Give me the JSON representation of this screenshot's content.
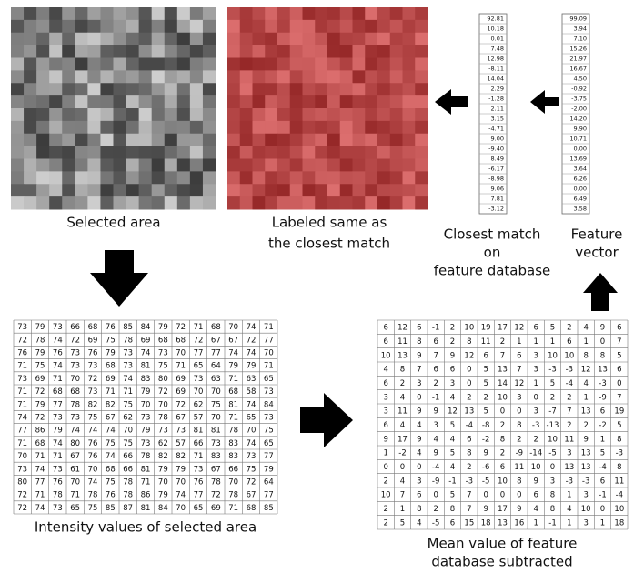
{
  "selected_area": {
    "label": "Selected area"
  },
  "labeled_area": {
    "label_lines": [
      "Labeled same as",
      "the closest match"
    ]
  },
  "closest_match": {
    "label_lines": [
      "Closest match",
      "on",
      "feature database"
    ],
    "values": [
      "92.81",
      "10.18",
      "0.01",
      "7.48",
      "12.98",
      "-8.11",
      "14.04",
      "2.29",
      "-1.28",
      "2.11",
      "3.15",
      "-4.71",
      "9.00",
      "-9.40",
      "8.49",
      "-6.17",
      "-8.98",
      "9.06",
      "7.81",
      "-3.12"
    ]
  },
  "feature_vector": {
    "label_lines": [
      "Feature",
      "vector"
    ],
    "values": [
      "99.09",
      "3.94",
      "7.10",
      "15.26",
      "21.97",
      "16.67",
      "4.50",
      "-0.92",
      "-3.75",
      "-2.00",
      "14.20",
      "9.90",
      "10.71",
      "0.00",
      "13.69",
      "3.64",
      "6.26",
      "0.00",
      "6.49",
      "3.58"
    ]
  },
  "intensity_table": {
    "caption": "Intensity values of selected area",
    "rows": [
      [
        73,
        79,
        73,
        66,
        68,
        76,
        85,
        84,
        79,
        72,
        71,
        68,
        70,
        74,
        71
      ],
      [
        72,
        78,
        74,
        72,
        69,
        75,
        78,
        69,
        68,
        68,
        72,
        67,
        67,
        72,
        77
      ],
      [
        76,
        79,
        76,
        73,
        76,
        79,
        73,
        74,
        73,
        70,
        77,
        77,
        74,
        74,
        70
      ],
      [
        71,
        75,
        74,
        73,
        73,
        68,
        73,
        81,
        75,
        71,
        65,
        64,
        79,
        79,
        71
      ],
      [
        73,
        69,
        71,
        70,
        72,
        69,
        74,
        83,
        80,
        69,
        73,
        63,
        71,
        63,
        65
      ],
      [
        71,
        72,
        68,
        68,
        73,
        71,
        71,
        79,
        72,
        69,
        70,
        70,
        68,
        58,
        73
      ],
      [
        71,
        79,
        77,
        78,
        82,
        82,
        75,
        70,
        70,
        72,
        62,
        75,
        81,
        74,
        84
      ],
      [
        74,
        72,
        73,
        73,
        75,
        67,
        62,
        73,
        78,
        67,
        57,
        70,
        71,
        65,
        73
      ],
      [
        77,
        86,
        79,
        74,
        74,
        74,
        70,
        79,
        73,
        73,
        81,
        81,
        78,
        70,
        75
      ],
      [
        71,
        68,
        74,
        80,
        76,
        75,
        75,
        73,
        62,
        57,
        66,
        73,
        83,
        74,
        65
      ],
      [
        70,
        71,
        71,
        67,
        76,
        74,
        66,
        78,
        82,
        82,
        71,
        83,
        83,
        73,
        77
      ],
      [
        73,
        74,
        73,
        61,
        70,
        68,
        66,
        81,
        79,
        79,
        73,
        67,
        66,
        75,
        79
      ],
      [
        80,
        77,
        76,
        70,
        74,
        75,
        78,
        71,
        70,
        70,
        76,
        78,
        70,
        72,
        64
      ],
      [
        72,
        71,
        78,
        71,
        78,
        76,
        78,
        86,
        79,
        74,
        77,
        72,
        78,
        67,
        77
      ],
      [
        72,
        74,
        73,
        65,
        75,
        85,
        87,
        81,
        84,
        70,
        65,
        69,
        71,
        68,
        85
      ]
    ]
  },
  "mean_table": {
    "caption_lines": [
      "Mean value of feature",
      "database subtracted"
    ],
    "rows": [
      [
        6,
        12,
        6,
        -1,
        2,
        10,
        19,
        17,
        12,
        6,
        5,
        2,
        4,
        9,
        6
      ],
      [
        6,
        11,
        8,
        6,
        2,
        8,
        11,
        2,
        1,
        1,
        1,
        6,
        1,
        0,
        7
      ],
      [
        10,
        13,
        9,
        7,
        9,
        12,
        6,
        7,
        6,
        3,
        10,
        10,
        8,
        8,
        5
      ],
      [
        4,
        8,
        7,
        6,
        6,
        0,
        5,
        13,
        7,
        3,
        -3,
        -3,
        12,
        13,
        6
      ],
      [
        6,
        2,
        3,
        2,
        3,
        0,
        5,
        14,
        12,
        1,
        5,
        -4,
        4,
        -3,
        0
      ],
      [
        3,
        4,
        0,
        -1,
        4,
        2,
        2,
        10,
        3,
        0,
        2,
        2,
        1,
        -9,
        7
      ],
      [
        3,
        11,
        9,
        9,
        12,
        13,
        5,
        0,
        0,
        3,
        -7,
        7,
        13,
        6,
        19
      ],
      [
        6,
        4,
        4,
        3,
        5,
        -4,
        -8,
        2,
        8,
        -3,
        -13,
        2,
        2,
        -2,
        5
      ],
      [
        9,
        17,
        9,
        4,
        4,
        6,
        -2,
        8,
        2,
        2,
        10,
        11,
        9,
        1,
        8
      ],
      [
        1,
        -2,
        4,
        9,
        5,
        8,
        9,
        2,
        -9,
        -14,
        -5,
        3,
        13,
        5,
        -3
      ],
      [
        0,
        0,
        0,
        -4,
        4,
        2,
        -6,
        6,
        11,
        10,
        0,
        13,
        13,
        -4,
        8
      ],
      [
        2,
        4,
        3,
        -9,
        -1,
        -3,
        -5,
        10,
        8,
        9,
        3,
        -3,
        -3,
        6,
        11
      ],
      [
        10,
        7,
        6,
        0,
        5,
        7,
        0,
        0,
        0,
        6,
        8,
        1,
        3,
        -1,
        -4
      ],
      [
        2,
        1,
        8,
        2,
        8,
        7,
        9,
        17,
        9,
        4,
        8,
        4,
        10,
        0,
        10
      ],
      [
        2,
        5,
        4,
        -5,
        6,
        15,
        18,
        13,
        16,
        1,
        -1,
        1,
        3,
        1,
        18
      ]
    ]
  }
}
